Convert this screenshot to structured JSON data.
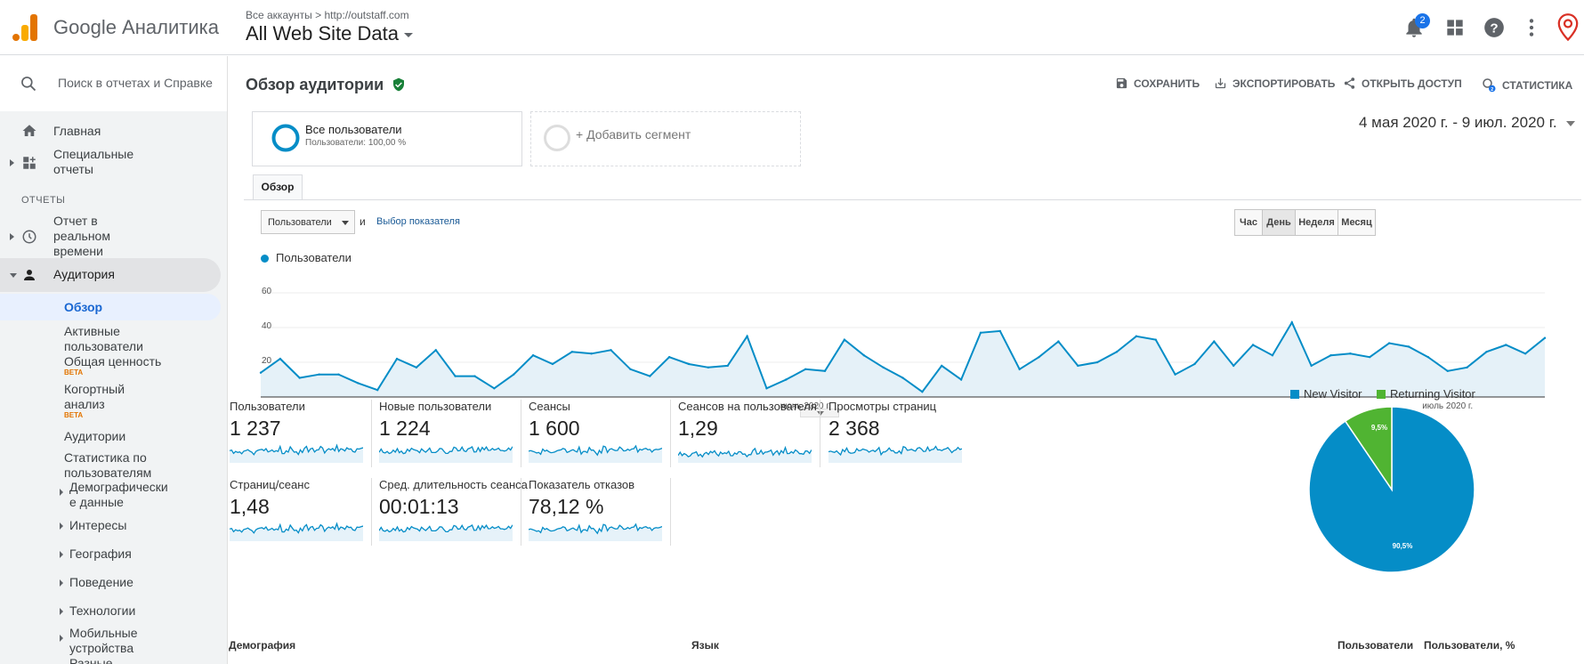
{
  "header": {
    "product": "Google Аналитика",
    "breadcrumb": [
      "Все аккаунты",
      "http://outstaff.com"
    ],
    "property": "All Web Site Data",
    "notifications_count": "2",
    "icons": [
      "bell-icon",
      "apps-icon",
      "help-icon",
      "more-vert-icon",
      "location-pin-icon"
    ]
  },
  "sidebar": {
    "search_placeholder": "Поиск в отчетах и Справке",
    "home": "Главная",
    "custom": [
      "Специальные",
      "отчеты"
    ],
    "section": "ОТЧЕТЫ",
    "realtime": [
      "Отчет в",
      "реальном",
      "времени"
    ],
    "audience": "Аудитория",
    "sub": {
      "overview": "Обзор",
      "active": [
        "Активные",
        "пользователи"
      ],
      "ltv": "Общая ценность",
      "cohort": [
        "Когортный",
        "анализ"
      ],
      "beta": "BETA",
      "audiences": "Аудитории",
      "user_explorer": [
        "Статистика по",
        "пользователям"
      ],
      "demographics": [
        "Демографически",
        "е данные"
      ],
      "interests": "Интересы",
      "geo": "География",
      "behavior": "Поведение",
      "technology": "Технологии",
      "mobile": [
        "Мобильные",
        "устройства"
      ],
      "misc": "Разные"
    }
  },
  "main": {
    "title": "Обзор аудитории",
    "actions": [
      "СОХРАНИТЬ",
      "ЭКСПОРТИРОВАТЬ",
      "ОТКРЫТЬ ДОСТУП",
      "СТАТИСТИКА"
    ],
    "segment_name": "Все пользователи",
    "segment_sub": "Пользователи: 100,00 %",
    "add_segment": "+ Добавить сегмент",
    "date_range": "4 мая 2020 г. - 9 июл. 2020 г.",
    "tab": "Обзор",
    "metric_select": "Пользователи",
    "and": "и",
    "choose_metric": "Выбор показателя",
    "periods": [
      "Час",
      "День",
      "Неделя",
      "Месяц"
    ],
    "bottom_headers": [
      "Демография",
      "Язык",
      "Пользователи",
      "Пользователи, %"
    ]
  },
  "chart_data": {
    "type": "area",
    "series": [
      {
        "name": "Пользователи",
        "values": [
          14,
          22,
          11,
          13,
          13,
          8,
          4,
          22,
          17,
          27,
          12,
          12,
          5,
          13,
          24,
          19,
          26,
          25,
          27,
          16,
          12,
          23,
          19,
          17,
          18,
          35,
          5,
          10,
          16,
          15,
          33,
          24,
          17,
          11,
          3,
          18,
          10,
          37,
          38,
          16,
          23,
          32,
          18,
          20,
          26,
          35,
          33,
          13,
          19,
          32,
          18,
          30,
          24,
          43,
          18,
          24,
          25,
          23,
          31,
          29,
          23,
          15,
          17,
          26,
          30,
          25,
          34
        ]
      }
    ],
    "ylim": [
      0,
      60
    ],
    "yticks": [
      "60",
      "40",
      "20"
    ],
    "x_labels": [
      "июнь 2020 г.",
      "июль 2020 г."
    ],
    "color": "#058dc7"
  },
  "metrics": [
    {
      "name": "Пользователи",
      "value": "1 237"
    },
    {
      "name": "Новые пользователи",
      "value": "1 224"
    },
    {
      "name": "Сеансы",
      "value": "1 600"
    },
    {
      "name": "Сеансов на пользователя",
      "value": "1,29"
    },
    {
      "name": "Просмотры страниц",
      "value": "2 368"
    },
    {
      "name": "Страниц/сеанс",
      "value": "1,48"
    },
    {
      "name": "Сред. длительность сеанса",
      "value": "00:01:13"
    },
    {
      "name": "Показатель отказов",
      "value": "78,12 %"
    }
  ],
  "pie": {
    "type": "pie",
    "series": [
      {
        "name": "New Visitor",
        "value": 90.5,
        "label": "90,5%",
        "color": "#058dc7"
      },
      {
        "name": "Returning Visitor",
        "value": 9.5,
        "label": "9,5%",
        "color": "#50b432"
      }
    ]
  }
}
